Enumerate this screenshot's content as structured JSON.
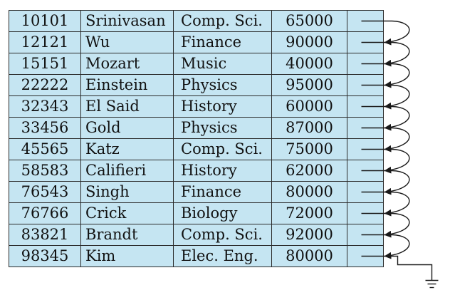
{
  "records": [
    {
      "id": "10101",
      "name": "Srinivasan",
      "dept": "Comp. Sci.",
      "salary": "65000"
    },
    {
      "id": "12121",
      "name": "Wu",
      "dept": "Finance",
      "salary": "90000"
    },
    {
      "id": "15151",
      "name": "Mozart",
      "dept": "Music",
      "salary": "40000"
    },
    {
      "id": "22222",
      "name": "Einstein",
      "dept": "Physics",
      "salary": "95000"
    },
    {
      "id": "32343",
      "name": "El Said",
      "dept": "History",
      "salary": "60000"
    },
    {
      "id": "33456",
      "name": "Gold",
      "dept": "Physics",
      "salary": "87000"
    },
    {
      "id": "45565",
      "name": "Katz",
      "dept": "Comp. Sci.",
      "salary": "75000"
    },
    {
      "id": "58583",
      "name": "Califieri",
      "dept": "History",
      "salary": "62000"
    },
    {
      "id": "76543",
      "name": "Singh",
      "dept": "Finance",
      "salary": "80000"
    },
    {
      "id": "76766",
      "name": "Crick",
      "dept": "Biology",
      "salary": "72000"
    },
    {
      "id": "83821",
      "name": "Brandt",
      "dept": "Comp. Sci.",
      "salary": "92000"
    },
    {
      "id": "98345",
      "name": "Kim",
      "dept": "Elec. Eng.",
      "salary": "80000"
    }
  ],
  "colors": {
    "cell_fill": "#c5e5f2",
    "border": "#2b2b2b",
    "pointer": "#1a1a1a"
  },
  "icons": {
    "null_terminator": "ground-symbol-icon"
  }
}
